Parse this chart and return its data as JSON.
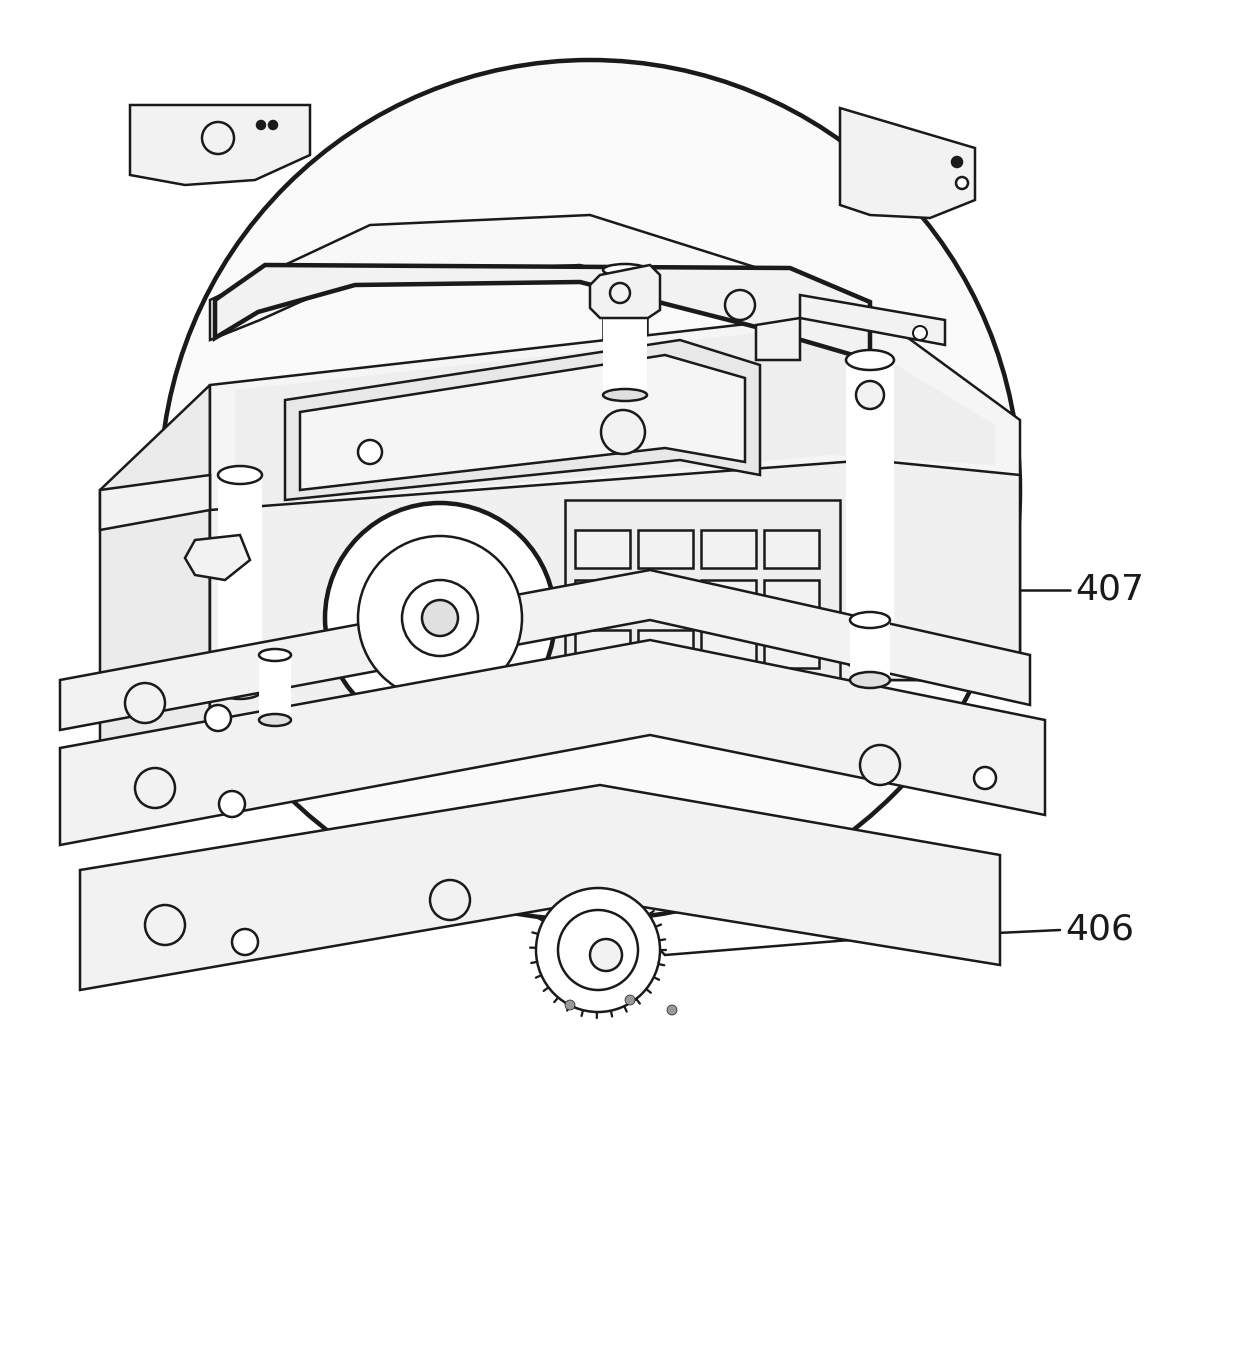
{
  "background_color": "#ffffff",
  "line_color": "#1a1a1a",
  "line_width": 1.8,
  "fig_width": 12.4,
  "fig_height": 13.5,
  "label_407": "407",
  "label_406": "406",
  "label_fontsize": 26,
  "fill_light": "#f2f2f2",
  "fill_mid": "#e0e0e0",
  "fill_white": "#ffffff",
  "fill_dark": "#cccccc"
}
